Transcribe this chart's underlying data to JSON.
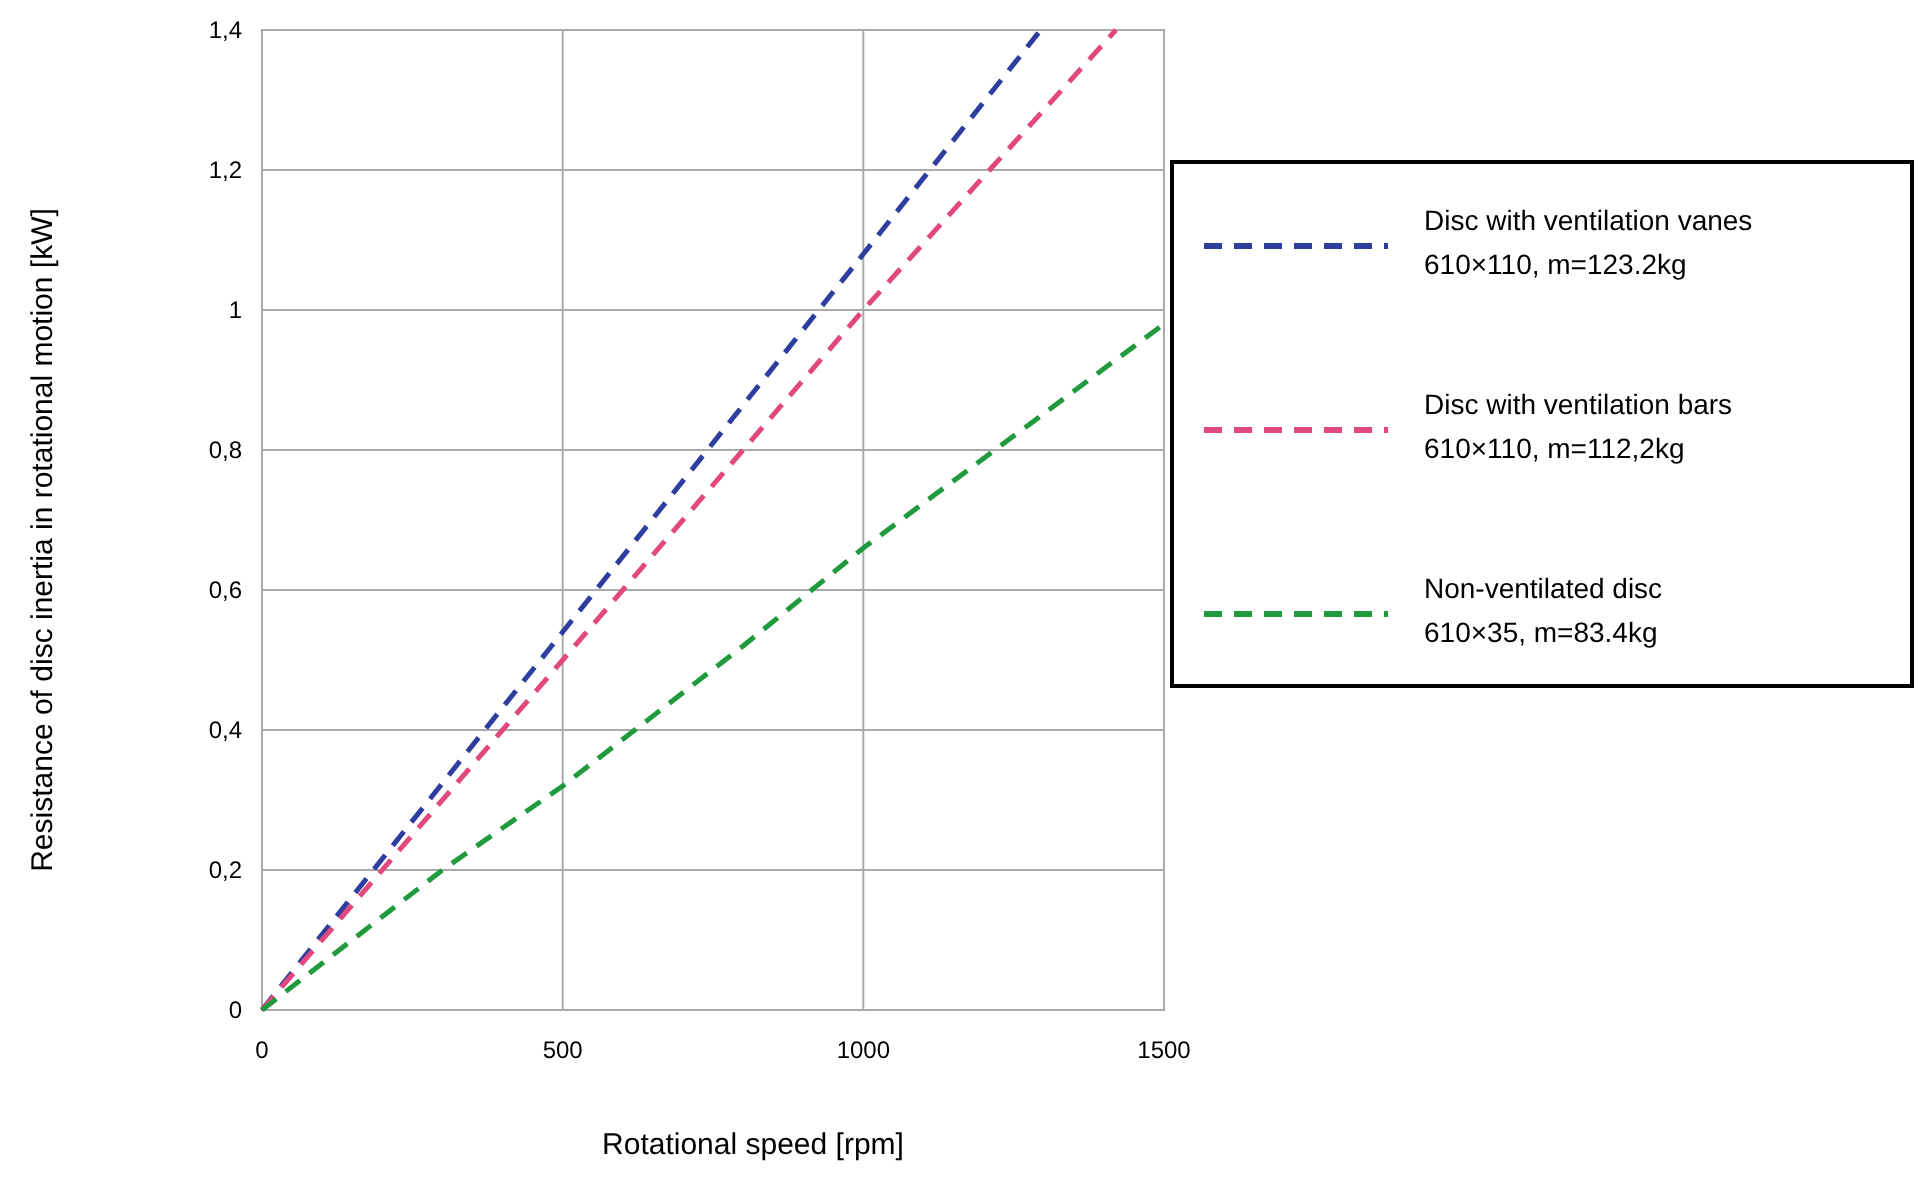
{
  "chart_data": {
    "type": "line",
    "xlabel": "Rotational speed [rpm]",
    "ylabel": "Resistance of disc inertia in rotational motion [kW]",
    "xlim": [
      0,
      1500
    ],
    "xticks": [
      0,
      500,
      1000,
      1500
    ],
    "ylim": [
      0,
      1.4
    ],
    "yticks": [
      0,
      {
        "value": 0.2,
        "label": "0,2"
      },
      {
        "value": 0.4,
        "label": "0,4"
      },
      {
        "value": 0.6,
        "label": "0,6"
      },
      {
        "value": 0.8,
        "label": "0,8"
      },
      1,
      {
        "value": 1.2,
        "label": "1,2"
      },
      {
        "value": 1.4,
        "label": "1,4"
      }
    ],
    "grid": true,
    "legend": "right",
    "line_style": "dashed",
    "series": [
      {
        "name": "Disc with ventilation vanes\n610×110, m=123.2kg",
        "color": "#2e3ea0",
        "x": [
          0,
          500,
          1000,
          1295
        ],
        "values": [
          0,
          0.54,
          1.08,
          1.4
        ]
      },
      {
        "name": "Disc with ventilation bars\n610×110, m=112,2kg",
        "color": "#e2477e",
        "x": [
          0,
          500,
          1000,
          1420
        ],
        "values": [
          0,
          0.5,
          1.0,
          1.4
        ]
      },
      {
        "name": "Non-ventilated disc\n610×35, m=83.4kg",
        "color": "#1f9a3c",
        "x": [
          0,
          300,
          500,
          800,
          1000,
          1500
        ],
        "values": [
          0,
          0.2,
          0.32,
          0.52,
          0.66,
          0.98
        ]
      }
    ]
  }
}
